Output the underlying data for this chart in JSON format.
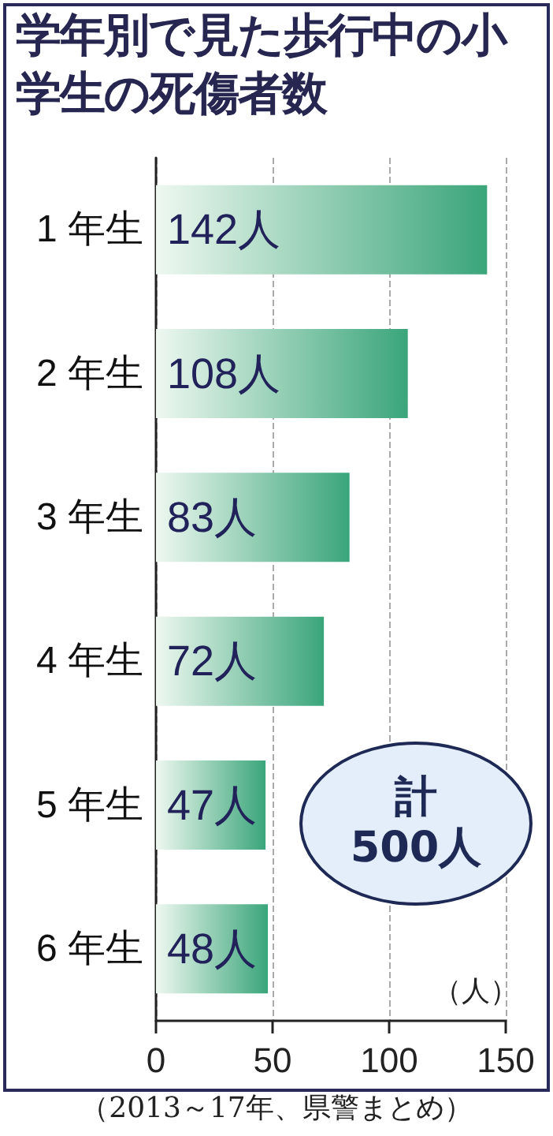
{
  "chart_data": {
    "type": "bar",
    "orientation": "horizontal",
    "title": "学年別で見た歩行中の小学生の死傷者数",
    "xlabel": "（人）",
    "categories": [
      "1 年生",
      "2 年生",
      "3 年生",
      "4 年生",
      "5 年生",
      "6 年生"
    ],
    "values": [
      142,
      108,
      83,
      72,
      47,
      48
    ],
    "value_labels": [
      "142人",
      "108人",
      "83人",
      "72人",
      "47人",
      "48人"
    ],
    "color": "#3aa57a",
    "xlim": [
      0,
      150
    ],
    "xticks": [
      0,
      50,
      100,
      150
    ],
    "grid": "x",
    "annotations": [
      "計\n500人",
      "（2013～17年、県警まとめ）"
    ]
  }
}
